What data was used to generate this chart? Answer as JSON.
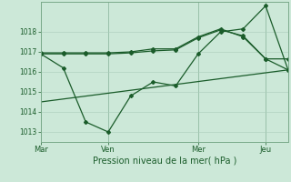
{
  "background_color": "#cce8d8",
  "plot_bg_color": "#cce8d8",
  "grid_color": "#aaccbb",
  "line_color": "#1a5c2a",
  "xlabel": "Pression niveau de la mer( hPa )",
  "xtick_labels": [
    "Mar",
    "Ven",
    "Mer",
    "Jeu"
  ],
  "xtick_positions": [
    0,
    30,
    70,
    100
  ],
  "ylim": [
    1012.5,
    1019.5
  ],
  "yticks": [
    1013,
    1014,
    1015,
    1016,
    1017,
    1018
  ],
  "xlim": [
    0,
    110
  ],
  "line1_x": [
    0,
    10,
    20,
    30,
    40,
    50,
    60,
    70,
    80,
    90,
    100,
    110
  ],
  "line1_y": [
    1016.9,
    1016.2,
    1013.5,
    1013.0,
    1014.8,
    1015.5,
    1015.3,
    1016.9,
    1018.0,
    1018.15,
    1019.3,
    1016.1
  ],
  "line2_x": [
    0,
    10,
    20,
    30,
    40,
    50,
    60,
    70,
    80,
    90,
    100,
    110
  ],
  "line2_y": [
    1016.9,
    1016.9,
    1016.9,
    1016.9,
    1016.95,
    1017.05,
    1017.1,
    1017.7,
    1018.1,
    1017.8,
    1016.65,
    1016.65
  ],
  "line3_x": [
    0,
    10,
    20,
    30,
    40,
    50,
    60,
    70,
    80,
    90,
    100,
    110
  ],
  "line3_y": [
    1016.95,
    1016.95,
    1016.95,
    1016.95,
    1017.0,
    1017.15,
    1017.15,
    1017.75,
    1018.15,
    1017.75,
    1016.65,
    1016.1
  ],
  "line4_x": [
    0,
    110
  ],
  "line4_y": [
    1014.5,
    1016.1
  ]
}
